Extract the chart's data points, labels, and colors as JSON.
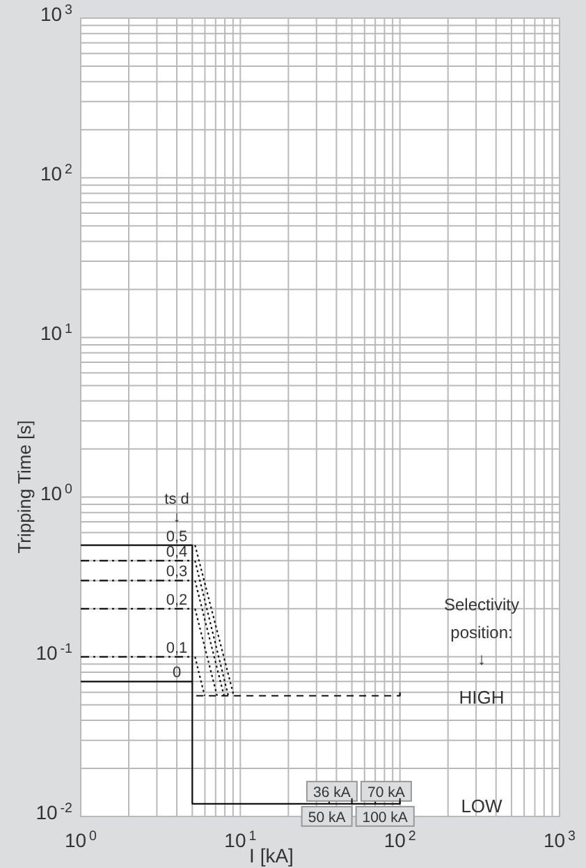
{
  "chart_data": {
    "type": "line",
    "xlabel": "I [kA]",
    "ylabel": "Tripping Time [s]",
    "log": "xy",
    "grid": true,
    "marker": "none",
    "xlim": [
      1,
      1000
    ],
    "ylim": [
      0.01,
      1000
    ],
    "xticks": [
      {
        "value": 1,
        "label": "10$^{0}$"
      },
      {
        "value": 10,
        "label": "10$^{1}$"
      },
      {
        "value": 100,
        "label": "10$^{2}$"
      },
      {
        "value": 1000,
        "label": "10$^{3}$"
      }
    ],
    "yticks": [
      {
        "value": 0.01,
        "label": "10$^{-2}$"
      },
      {
        "value": 0.1,
        "label": "10$^{-1}$"
      },
      {
        "value": 1,
        "label": "10$^{0}$"
      },
      {
        "value": 10,
        "label": "10$^{1}$"
      },
      {
        "value": 100,
        "label": "10$^{2}$"
      },
      {
        "value": 1000,
        "label": "10$^{3}$"
      }
    ],
    "series": [
      {
        "color": "#111111",
        "line_style": "solid",
        "x": [
          1,
          5,
          5,
          100,
          100
        ],
        "values": [
          0.5,
          0.5,
          0.012,
          0.012,
          0.013
        ]
      },
      {
        "color": "#111111",
        "line_style": "solid",
        "x": [
          1,
          5
        ],
        "values": [
          0.07,
          0.07
        ]
      },
      {
        "color": "#111111",
        "line_style": "dashed",
        "x": [
          1,
          5
        ],
        "values": [
          0.4,
          0.4
        ]
      },
      {
        "color": "#111111",
        "line_style": "dashed",
        "x": [
          1,
          5
        ],
        "values": [
          0.3,
          0.3
        ]
      },
      {
        "color": "#111111",
        "line_style": "dashed",
        "x": [
          1,
          5
        ],
        "values": [
          0.2,
          0.2
        ]
      },
      {
        "color": "#111111",
        "line_style": "dashed",
        "x": [
          1,
          5
        ],
        "values": [
          0.1,
          0.1
        ]
      },
      {
        "color": "#111111",
        "line_style": "dotted",
        "x": [
          5.2,
          9.1
        ],
        "values": [
          0.5,
          0.057
        ]
      },
      {
        "color": "#111111",
        "line_style": "dotted",
        "x": [
          5.2,
          8.4
        ],
        "values": [
          0.4,
          0.057
        ]
      },
      {
        "color": "#111111",
        "line_style": "dotted",
        "x": [
          5.2,
          7.9
        ],
        "values": [
          0.3,
          0.057
        ]
      },
      {
        "color": "#111111",
        "line_style": "dotted",
        "x": [
          5.2,
          7.15
        ],
        "values": [
          0.2,
          0.057
        ]
      },
      {
        "color": "#111111",
        "line_style": "dotted",
        "x": [
          5.2,
          5.97
        ],
        "values": [
          0.1,
          0.057
        ]
      },
      {
        "color": "#111111",
        "line_style": "dashed",
        "x": [
          5.3,
          100,
          100
        ],
        "values": [
          0.057,
          0.057,
          0.06
        ]
      }
    ],
    "annotations": [
      {
        "text": "0",
        "x": 4,
        "y": 0.07
      },
      {
        "text": "0,1",
        "x": 4,
        "y": 0.1
      },
      {
        "text": "0,2",
        "x": 4,
        "y": 0.2
      },
      {
        "text": "0,3",
        "x": 4,
        "y": 0.3
      },
      {
        "text": "0,4",
        "x": 4,
        "y": 0.4
      },
      {
        "text": "0,5",
        "x": 4,
        "y": 0.5
      },
      "ts d\n↓",
      {
        "text": "36 kA",
        "x": 36,
        "y": 0.012
      },
      {
        "text": "50 kA",
        "x": 50,
        "y": 0.012
      },
      {
        "text": "70 kA",
        "x": 70,
        "y": 0.012
      },
      {
        "text": "100 kA",
        "x": 100,
        "y": 0.012
      },
      "Selectivity\nposition:\n↓",
      "HIGH",
      "LOW"
    ]
  }
}
